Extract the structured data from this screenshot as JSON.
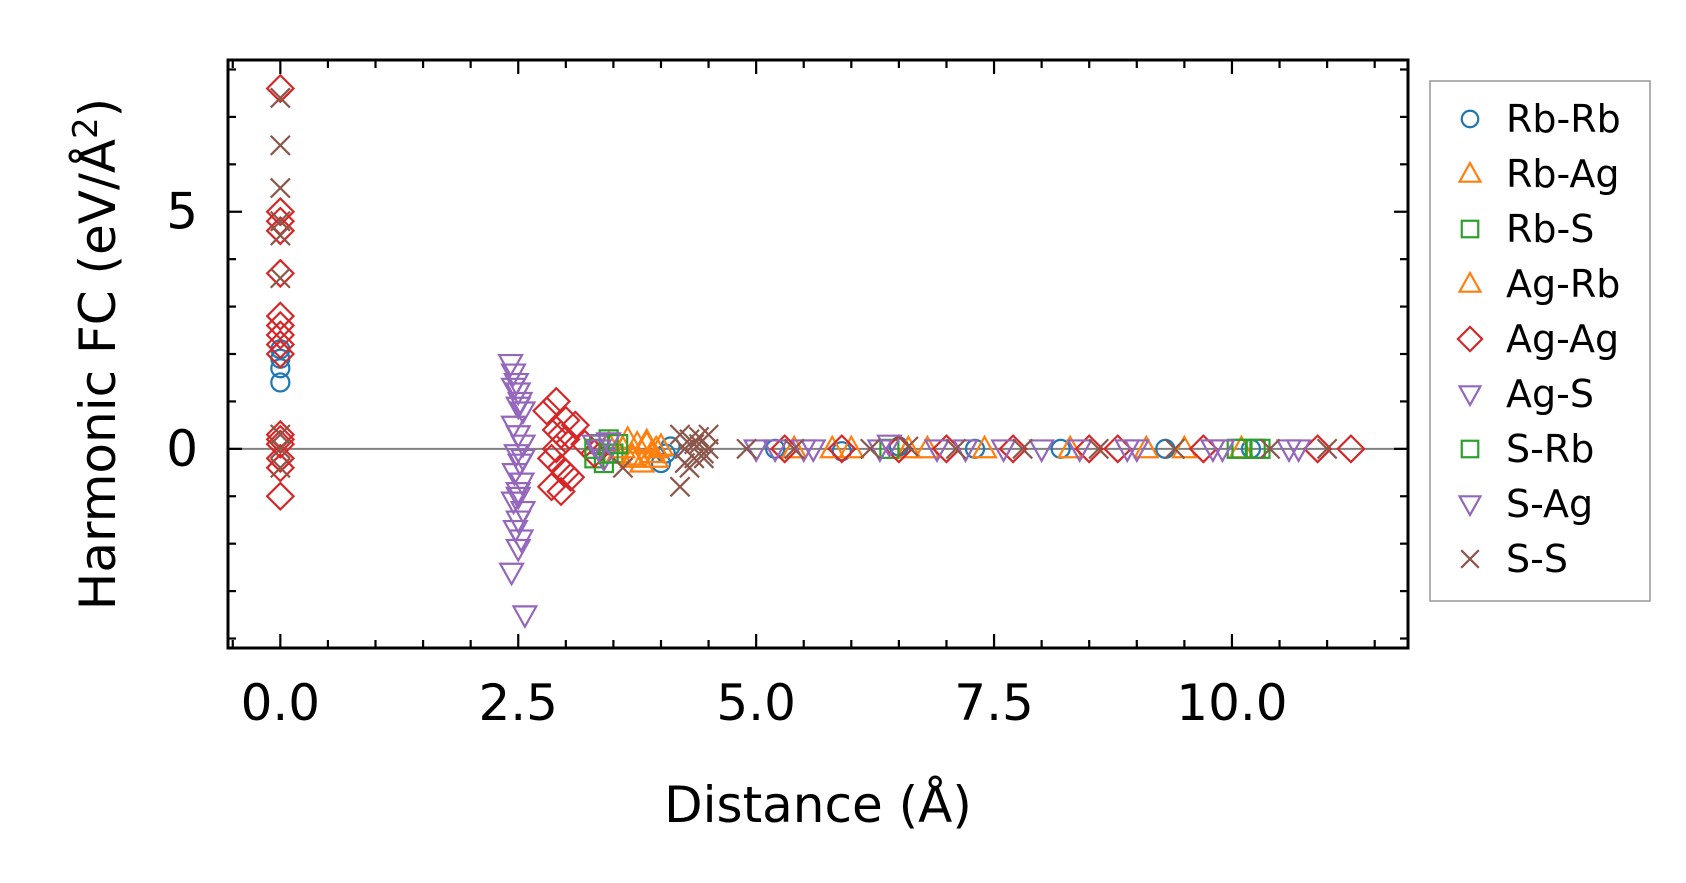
{
  "chart_data": {
    "type": "scatter",
    "xlabel": "Distance (Å)",
    "ylabel_main": "Harmonic FC (eV/Å",
    "ylabel_sup": "2",
    "ylabel_close": ")",
    "xlim": [
      -0.55,
      11.85
    ],
    "ylim": [
      -4.2,
      8.2
    ],
    "x_ticks": [
      0.0,
      2.5,
      5.0,
      7.5,
      10.0
    ],
    "x_tick_labels": [
      "0.0",
      "2.5",
      "5.0",
      "7.5",
      "10.0"
    ],
    "y_ticks": [
      0,
      5
    ],
    "y_tick_labels": [
      "0",
      "5"
    ],
    "reference_line_y": 0,
    "reference_line_color": "#808080",
    "legend_position": "outside-right",
    "series": [
      {
        "name": "Rb-Rb",
        "marker": "circle",
        "color": "#1f77b4",
        "x": [
          0,
          0,
          0,
          0,
          4.0,
          4.05,
          4.1,
          5.2,
          5.9,
          6.5,
          7.3,
          8.2,
          9.3,
          10.2
        ],
        "y": [
          1.4,
          1.7,
          1.9,
          2.1,
          -0.3,
          -0.1,
          0.05,
          0.0,
          -0.05,
          0.05,
          0.0,
          0.0,
          0.0,
          0.0
        ]
      },
      {
        "name": "Rb-Ag",
        "marker": "triangle-up",
        "color": "#ff7f0e",
        "x": [
          3.45,
          3.55,
          3.65,
          3.7,
          3.75,
          3.8,
          3.85,
          3.9,
          3.95,
          5.4,
          6.0,
          6.6,
          7.4,
          8.3,
          9.1,
          10.1
        ],
        "y": [
          0.1,
          -0.1,
          0.2,
          -0.2,
          0.1,
          -0.3,
          0.15,
          -0.1,
          0.0,
          0.0,
          0.0,
          0.0,
          0.0,
          0.0,
          0.0,
          0.0
        ]
      },
      {
        "name": "Rb-S",
        "marker": "square",
        "color": "#2ca02c",
        "x": [
          3.3,
          3.35,
          3.4,
          3.45,
          3.5,
          6.4,
          10.05,
          10.25
        ],
        "y": [
          -0.2,
          0.1,
          -0.3,
          0.2,
          -0.1,
          0.0,
          0.0,
          0.0
        ]
      },
      {
        "name": "Ag-Rb",
        "marker": "triangle-up",
        "color": "#ff7f0e",
        "x": [
          3.6,
          3.7,
          3.85,
          3.95,
          4.0,
          5.8,
          6.8,
          9.5
        ],
        "y": [
          0.0,
          -0.15,
          0.1,
          -0.2,
          0.05,
          0.0,
          0.0,
          0.0
        ]
      },
      {
        "name": "Ag-Ag",
        "marker": "diamond",
        "color": "#d62728",
        "x": [
          0,
          0,
          0,
          0,
          0,
          0,
          0,
          0,
          0,
          0,
          0,
          0,
          0,
          0,
          0,
          0,
          2.8,
          2.85,
          2.9,
          2.95,
          3.0,
          3.05,
          2.9,
          2.95,
          3.0,
          2.85,
          3.1,
          2.9,
          3.0,
          2.95,
          3.2,
          3.3,
          5.3,
          5.9,
          6.5,
          7.0,
          7.7,
          8.5,
          8.8,
          9.7,
          10.9,
          11.25
        ],
        "y": [
          7.6,
          5.0,
          4.8,
          4.6,
          3.7,
          2.8,
          2.6,
          2.4,
          2.2,
          2.0,
          0.3,
          0.2,
          0.1,
          -0.2,
          -0.4,
          -1.0,
          0.8,
          -0.8,
          1.0,
          -0.9,
          0.6,
          -0.6,
          0.4,
          -0.4,
          0.2,
          -0.2,
          0.5,
          0.0,
          -0.5,
          0.3,
          0.1,
          -0.1,
          0.0,
          0.0,
          0.0,
          0.0,
          0.0,
          0.0,
          0.0,
          0.0,
          0.0,
          0.0
        ]
      },
      {
        "name": "Ag-S",
        "marker": "triangle-down",
        "color": "#9467bd",
        "x": [
          2.42,
          2.45,
          2.48,
          2.5,
          2.52,
          2.55,
          2.45,
          2.5,
          2.55,
          2.48,
          2.52,
          2.46,
          2.54,
          2.5,
          2.45,
          2.55,
          2.5,
          2.43,
          2.57,
          3.3,
          3.4,
          5.0,
          5.6,
          6.3,
          7.2,
          8.0,
          8.9,
          9.8,
          10.6
        ],
        "y": [
          1.8,
          1.6,
          1.4,
          1.2,
          1.0,
          0.8,
          0.5,
          0.3,
          0.1,
          -0.1,
          -0.3,
          -0.5,
          -0.7,
          -0.9,
          -1.1,
          -1.3,
          -1.5,
          -2.6,
          -3.5,
          0.1,
          -0.2,
          0.0,
          0.0,
          0.0,
          0.0,
          0.0,
          0.0,
          0.0,
          0.0
        ]
      },
      {
        "name": "S-Rb",
        "marker": "square",
        "color": "#2ca02c",
        "x": [
          3.3,
          3.45,
          3.55,
          10.1,
          10.3
        ],
        "y": [
          0.0,
          -0.1,
          0.1,
          0.0,
          0.0
        ]
      },
      {
        "name": "S-Ag",
        "marker": "triangle-down",
        "color": "#9467bd",
        "x": [
          2.45,
          2.5,
          2.55,
          2.5,
          2.47,
          2.53,
          2.5,
          3.35,
          3.45,
          5.2,
          5.5,
          6.4,
          6.9,
          7.6,
          8.4,
          9.0,
          9.9,
          10.7
        ],
        "y": [
          1.3,
          0.9,
          -0.2,
          -1.0,
          -1.7,
          -1.9,
          -2.1,
          0.0,
          0.15,
          0.0,
          0.0,
          0.1,
          0.0,
          0.0,
          0.0,
          0.0,
          0.0,
          0.0
        ]
      },
      {
        "name": "S-S",
        "marker": "x",
        "color": "#8c564b",
        "x": [
          0,
          0,
          0,
          0,
          0,
          0,
          0,
          0,
          0,
          3.6,
          4.2,
          4.25,
          4.3,
          4.35,
          4.4,
          4.45,
          4.5,
          4.25,
          4.35,
          4.45,
          4.3,
          4.4,
          4.2,
          4.5,
          4.9,
          5.4,
          6.2,
          6.6,
          7.1,
          7.8,
          8.6,
          9.4,
          10.4,
          11.0
        ],
        "y": [
          7.4,
          6.4,
          5.5,
          4.8,
          4.5,
          3.6,
          0.3,
          0.0,
          -0.4,
          -0.4,
          0.3,
          -0.3,
          0.2,
          -0.2,
          0.1,
          -0.1,
          0.3,
          0.0,
          0.1,
          -0.2,
          -0.4,
          0.25,
          -0.8,
          0.0,
          0.0,
          0.0,
          0.0,
          0.05,
          0.0,
          0.0,
          0.0,
          0.0,
          0.0,
          0.0
        ]
      }
    ]
  }
}
